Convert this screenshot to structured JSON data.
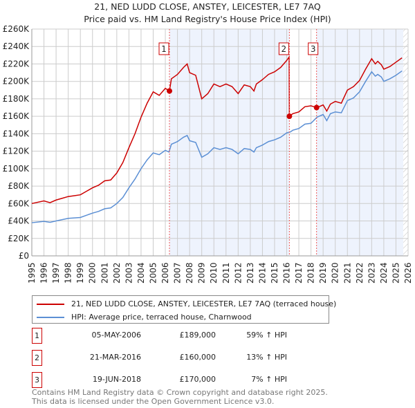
{
  "chart_data": {
    "type": "line",
    "title": "21, NED LUDD CLOSE, ANSTEY, LEICESTER, LE7 7AQ",
    "subtitle": "Price paid vs. HM Land Registry's House Price Index (HPI)",
    "xlim": [
      1995,
      2026
    ],
    "ylim": [
      0,
      260000
    ],
    "x_ticks": [
      "1995",
      "1996",
      "1997",
      "1998",
      "1999",
      "2000",
      "2001",
      "2002",
      "2003",
      "2004",
      "2005",
      "2006",
      "2007",
      "2008",
      "2009",
      "2010",
      "2011",
      "2012",
      "2013",
      "2014",
      "2015",
      "2016",
      "2017",
      "2018",
      "2019",
      "2020",
      "2021",
      "2022",
      "2023",
      "2024",
      "2025",
      "2026"
    ],
    "y_ticks": [
      "£0",
      "£20K",
      "£40K",
      "£60K",
      "£80K",
      "£100K",
      "£120K",
      "£140K",
      "£160K",
      "£180K",
      "£200K",
      "£220K",
      "£240K",
      "£260K"
    ],
    "grid": true,
    "colors": {
      "property": "#cc0000",
      "hpi": "#5b8fd4",
      "shade": "#eef3fd"
    },
    "series": [
      {
        "name": "21, NED LUDD CLOSE, ANSTEY, LEICESTER, LE7 7AQ (terraced house)",
        "color": "#cc0000",
        "x": [
          1995.0,
          1996.0,
          1996.5,
          1997.0,
          1997.5,
          1998.0,
          1998.5,
          1999.0,
          1999.5,
          2000.0,
          2000.5,
          2001.0,
          2001.5,
          2002.0,
          2002.5,
          2003.0,
          2003.5,
          2004.0,
          2004.5,
          2005.0,
          2005.5,
          2006.0,
          2006.34,
          2006.5,
          2007.0,
          2007.5,
          2007.8,
          2008.0,
          2008.5,
          2009.0,
          2009.5,
          2010.0,
          2010.5,
          2011.0,
          2011.5,
          2012.0,
          2012.5,
          2013.0,
          2013.3,
          2013.5,
          2014.0,
          2014.5,
          2015.0,
          2015.5,
          2016.0,
          2016.2,
          2016.22,
          2016.5,
          2017.0,
          2017.5,
          2018.0,
          2018.46,
          2018.5,
          2019.0,
          2019.3,
          2019.6,
          2020.0,
          2020.5,
          2021.0,
          2021.5,
          2022.0,
          2022.5,
          2023.0,
          2023.3,
          2023.5,
          2023.8,
          2024.0,
          2024.5,
          2025.0,
          2025.5
        ],
        "y": [
          60000,
          63000,
          61000,
          64000,
          66000,
          68000,
          69000,
          70000,
          74000,
          78000,
          81000,
          86000,
          87000,
          95000,
          107000,
          124000,
          140000,
          159000,
          175000,
          188000,
          184000,
          192000,
          189000,
          203000,
          208000,
          216000,
          220000,
          210000,
          207000,
          180000,
          186000,
          197000,
          194000,
          197000,
          194000,
          186000,
          196000,
          194000,
          189000,
          197000,
          202000,
          208000,
          211000,
          216000,
          224000,
          228000,
          160000,
          163000,
          165000,
          171000,
          172000,
          170000,
          170000,
          173000,
          166000,
          174000,
          177000,
          175000,
          190000,
          194000,
          201000,
          214000,
          226000,
          220000,
          223000,
          219000,
          214000,
          217000,
          222000,
          227000
        ]
      },
      {
        "name": "HPI: Average price, terraced house, Charnwood",
        "color": "#5b8fd4",
        "x": [
          1995.0,
          1996.0,
          1996.5,
          1997.0,
          1997.5,
          1998.0,
          1998.5,
          1999.0,
          1999.5,
          2000.0,
          2000.5,
          2001.0,
          2001.5,
          2002.0,
          2002.5,
          2003.0,
          2003.5,
          2004.0,
          2004.5,
          2005.0,
          2005.5,
          2006.0,
          2006.3,
          2006.5,
          2007.0,
          2007.5,
          2007.8,
          2008.0,
          2008.5,
          2009.0,
          2009.5,
          2010.0,
          2010.5,
          2011.0,
          2011.5,
          2012.0,
          2012.5,
          2013.0,
          2013.3,
          2013.5,
          2014.0,
          2014.5,
          2015.0,
          2015.5,
          2016.0,
          2016.3,
          2016.5,
          2017.0,
          2017.5,
          2018.0,
          2018.5,
          2019.0,
          2019.3,
          2019.6,
          2020.0,
          2020.5,
          2021.0,
          2021.5,
          2022.0,
          2022.5,
          2023.0,
          2023.3,
          2023.5,
          2023.8,
          2024.0,
          2024.5,
          2025.0,
          2025.5
        ],
        "y": [
          38000,
          39500,
          38500,
          40000,
          41500,
          43000,
          43500,
          44000,
          46500,
          49000,
          51000,
          54000,
          55000,
          60000,
          67000,
          78000,
          88000,
          100000,
          110000,
          118000,
          116000,
          121000,
          119000,
          128000,
          131000,
          136000,
          138000,
          132000,
          130000,
          113000,
          117000,
          124000,
          122000,
          124000,
          122000,
          117000,
          123000,
          122000,
          119000,
          124000,
          127000,
          131000,
          133000,
          136000,
          141000,
          142000,
          144000,
          146000,
          151000,
          152000,
          159000,
          162000,
          155000,
          163000,
          165000,
          164000,
          178000,
          181000,
          188000,
          200000,
          211000,
          206000,
          208000,
          205000,
          200000,
          203000,
          207000,
          212000
        ]
      }
    ],
    "sales": [
      {
        "label": "1",
        "x": 2006.34,
        "y": 189000,
        "date": "05-MAY-2006",
        "price": "£189,000",
        "hpi": "59% ↑ HPI"
      },
      {
        "label": "2",
        "x": 2016.22,
        "y": 160000,
        "date": "21-MAR-2016",
        "price": "£160,000",
        "hpi": "13% ↑ HPI"
      },
      {
        "label": "3",
        "x": 2018.46,
        "y": 170000,
        "date": "19-JUN-2018",
        "price": "£170,000",
        "hpi": "7% ↑ HPI"
      }
    ],
    "shaded_ranges": [
      [
        2006.34,
        2016.22
      ],
      [
        2018.46,
        2025.6
      ]
    ],
    "hatched_from": 2025.6
  },
  "legend": {
    "property": "21, NED LUDD CLOSE, ANSTEY, LEICESTER, LE7 7AQ (terraced house)",
    "hpi": "HPI: Average price, terraced house, Charnwood"
  },
  "footer": {
    "line1": "Contains HM Land Registry data © Crown copyright and database right 2025.",
    "line2": "This data is licensed under the Open Government Licence v3.0."
  }
}
